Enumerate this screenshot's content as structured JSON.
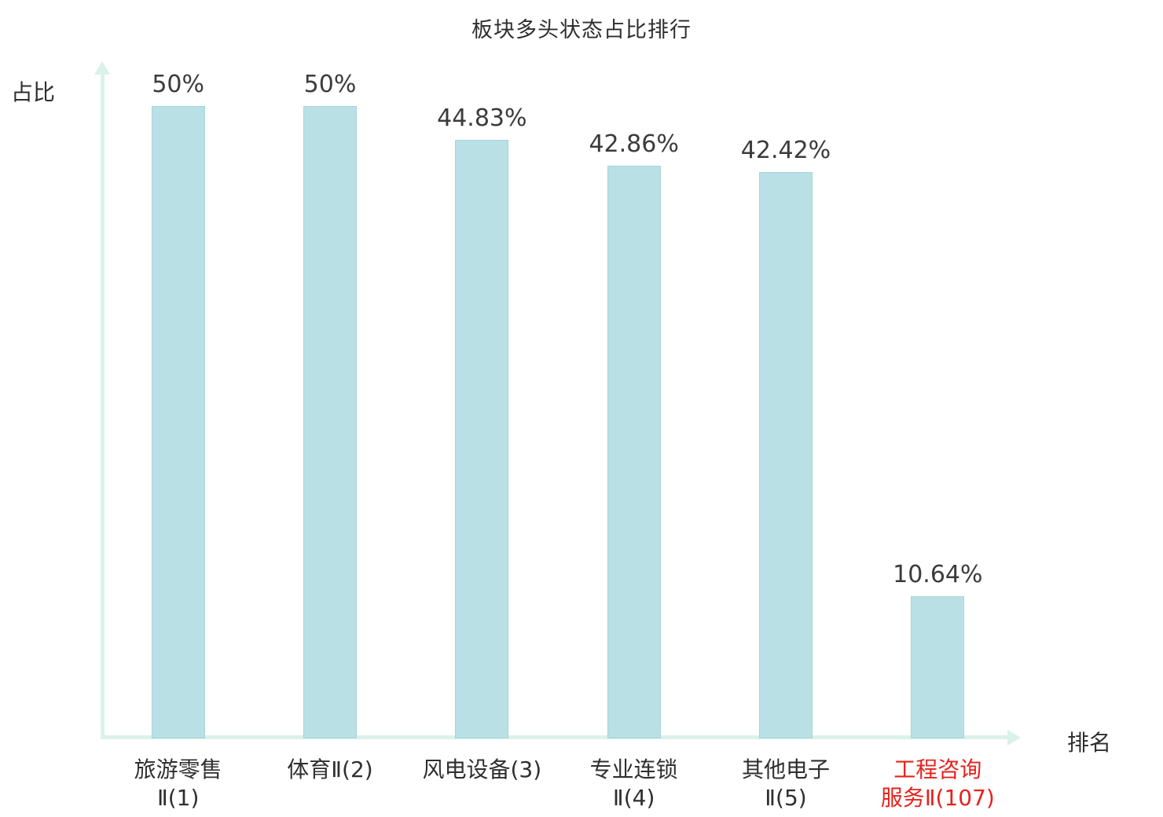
{
  "page": {
    "title": "板块多头状态占比排行",
    "y_axis_label": "占比",
    "x_axis_label": "排名"
  },
  "chart_data": {
    "type": "bar",
    "title": "板块多头状态占比排行",
    "xlabel": "排名",
    "ylabel": "占比",
    "categories": [
      "旅游零售Ⅱ(1)",
      "体育Ⅱ(2)",
      "风电设备(3)",
      "专业连锁Ⅱ(4)",
      "其他电子Ⅱ(5)",
      "工程咨询服务Ⅱ(107)"
    ],
    "category_label_lines": [
      [
        "旅游零售",
        "Ⅱ(1)"
      ],
      [
        "体育Ⅱ(2)"
      ],
      [
        "风电设备(3)"
      ],
      [
        "专业连锁",
        "Ⅱ(4)"
      ],
      [
        "其他电子",
        "Ⅱ(5)"
      ],
      [
        "工程咨询",
        "服务Ⅱ(107)"
      ]
    ],
    "values": [
      50,
      50,
      44.83,
      42.86,
      42.42,
      10.64
    ],
    "value_labels": [
      "50%",
      "50%",
      "44.83%",
      "42.86%",
      "42.42%",
      "10.64%"
    ],
    "ylim": [
      0,
      50
    ],
    "highlight_index": 5,
    "grid": false,
    "legend": "none",
    "colors": {
      "bar_fill": "#b9e0e4",
      "bar_border": "#a6d4da",
      "axis": "#daf2e9",
      "text": "#3b3b3b",
      "highlight_text": "#e8221c"
    }
  }
}
